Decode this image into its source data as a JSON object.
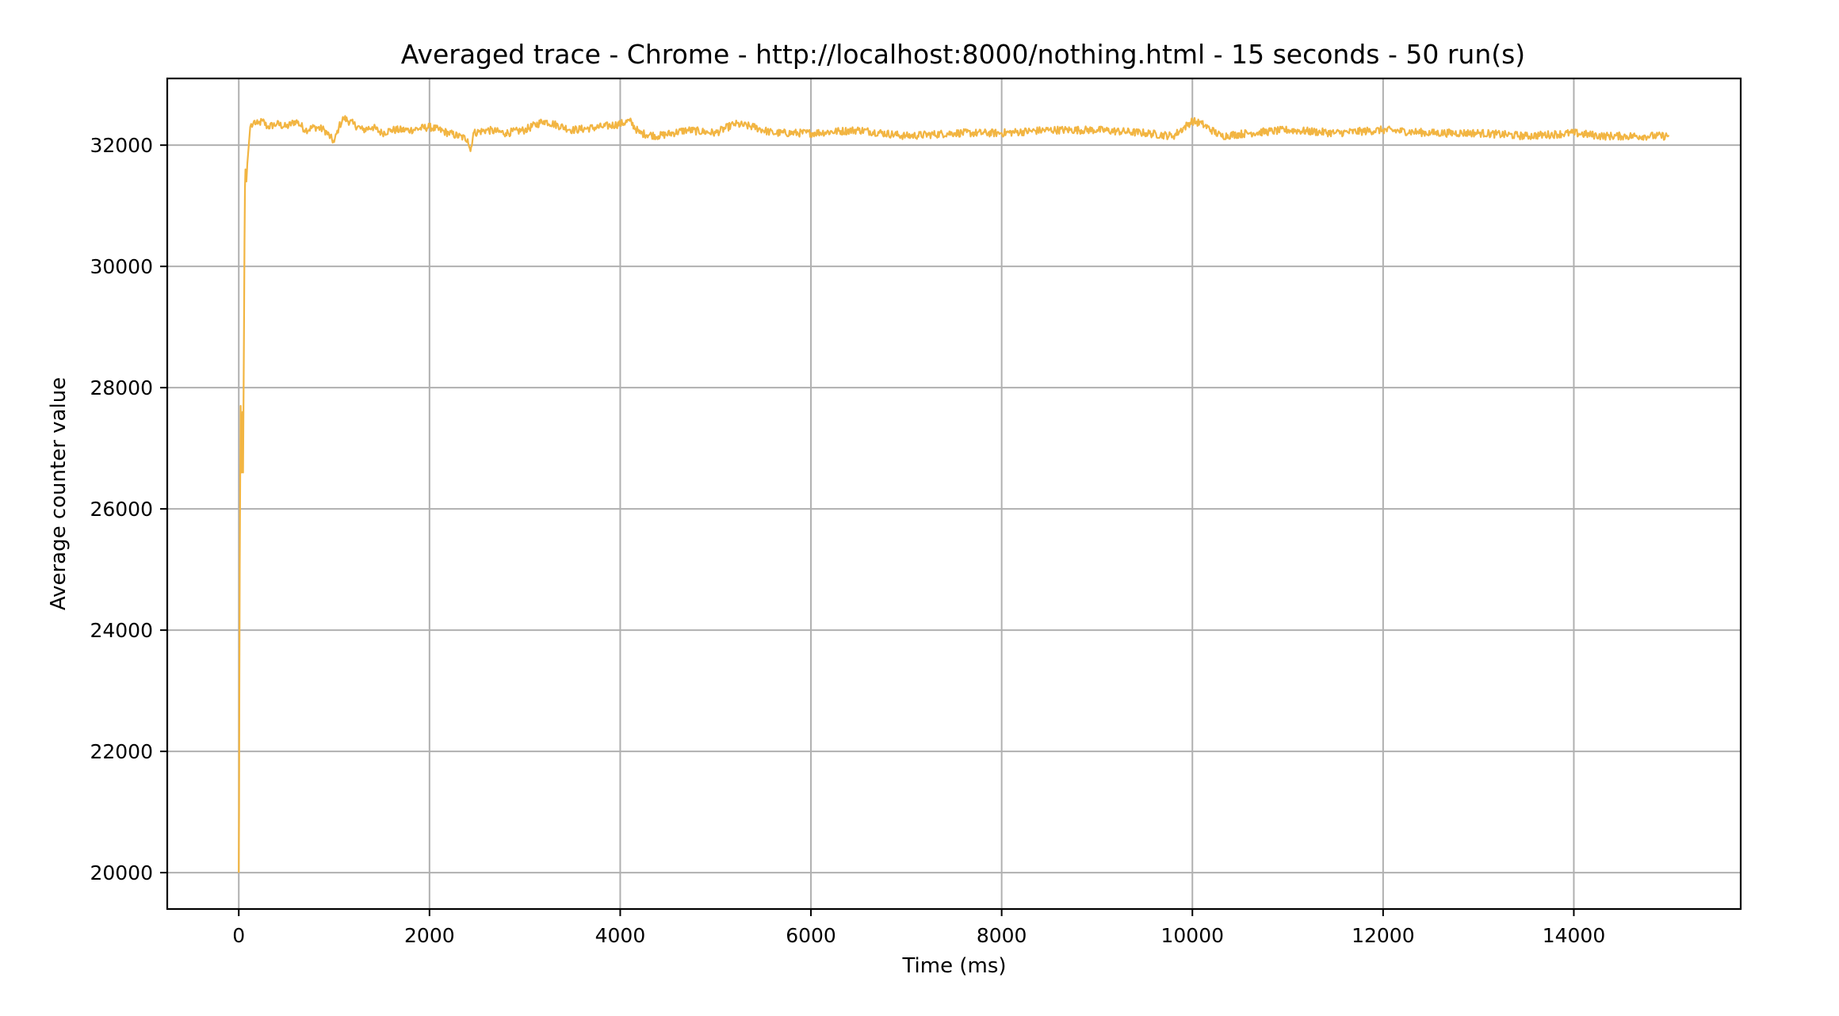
{
  "chart_data": {
    "type": "line",
    "title": "Averaged trace - Chrome - http://localhost:8000/nothing.html - 15 seconds - 50 run(s)",
    "xlabel": "Time (ms)",
    "ylabel": "Average counter value",
    "xlim": [
      -750,
      15750
    ],
    "ylim": [
      19400,
      33100
    ],
    "xticks": [
      0,
      2000,
      4000,
      6000,
      8000,
      10000,
      12000,
      14000
    ],
    "yticks": [
      20000,
      22000,
      24000,
      26000,
      28000,
      30000,
      32000
    ],
    "grid": true,
    "series": [
      {
        "color": "#f2b542",
        "x": [
          0,
          3,
          6,
          10,
          15,
          20,
          25,
          30,
          35,
          40,
          45,
          50,
          55,
          60,
          65,
          70,
          75,
          80,
          90,
          100,
          110,
          120,
          130,
          140,
          160,
          180,
          200,
          250,
          300,
          400,
          500,
          600,
          700,
          800,
          900,
          1000,
          1050,
          1100,
          1200,
          1300,
          1400,
          1500,
          1600,
          1800,
          2000,
          2200,
          2400,
          2430,
          2460,
          2600,
          2800,
          3000,
          3200,
          3500,
          3800,
          4000,
          4100,
          4200,
          4400,
          4700,
          5000,
          5200,
          5400,
          5600,
          6000,
          6500,
          7000,
          7500,
          8000,
          8500,
          9000,
          9500,
          9800,
          10000,
          10100,
          10300,
          10600,
          11000,
          11500,
          12000,
          12500,
          13000,
          13500,
          14000,
          14300,
          14500,
          14800,
          15000
        ],
        "y": [
          20000,
          21000,
          23000,
          25000,
          26500,
          27700,
          27200,
          26600,
          26800,
          27600,
          26600,
          27800,
          29000,
          30400,
          31300,
          31600,
          31500,
          31400,
          31700,
          31900,
          32100,
          32300,
          32350,
          32300,
          32400,
          32350,
          32350,
          32400,
          32300,
          32350,
          32300,
          32400,
          32250,
          32300,
          32250,
          32050,
          32300,
          32450,
          32350,
          32250,
          32300,
          32200,
          32250,
          32250,
          32300,
          32200,
          32100,
          31900,
          32200,
          32250,
          32200,
          32250,
          32400,
          32250,
          32300,
          32350,
          32400,
          32200,
          32150,
          32250,
          32200,
          32350,
          32300,
          32200,
          32200,
          32250,
          32150,
          32200,
          32200,
          32250,
          32250,
          32200,
          32150,
          32400,
          32350,
          32150,
          32200,
          32250,
          32200,
          32250,
          32200,
          32200,
          32150,
          32200,
          32150,
          32150,
          32150,
          32150
        ]
      }
    ]
  }
}
